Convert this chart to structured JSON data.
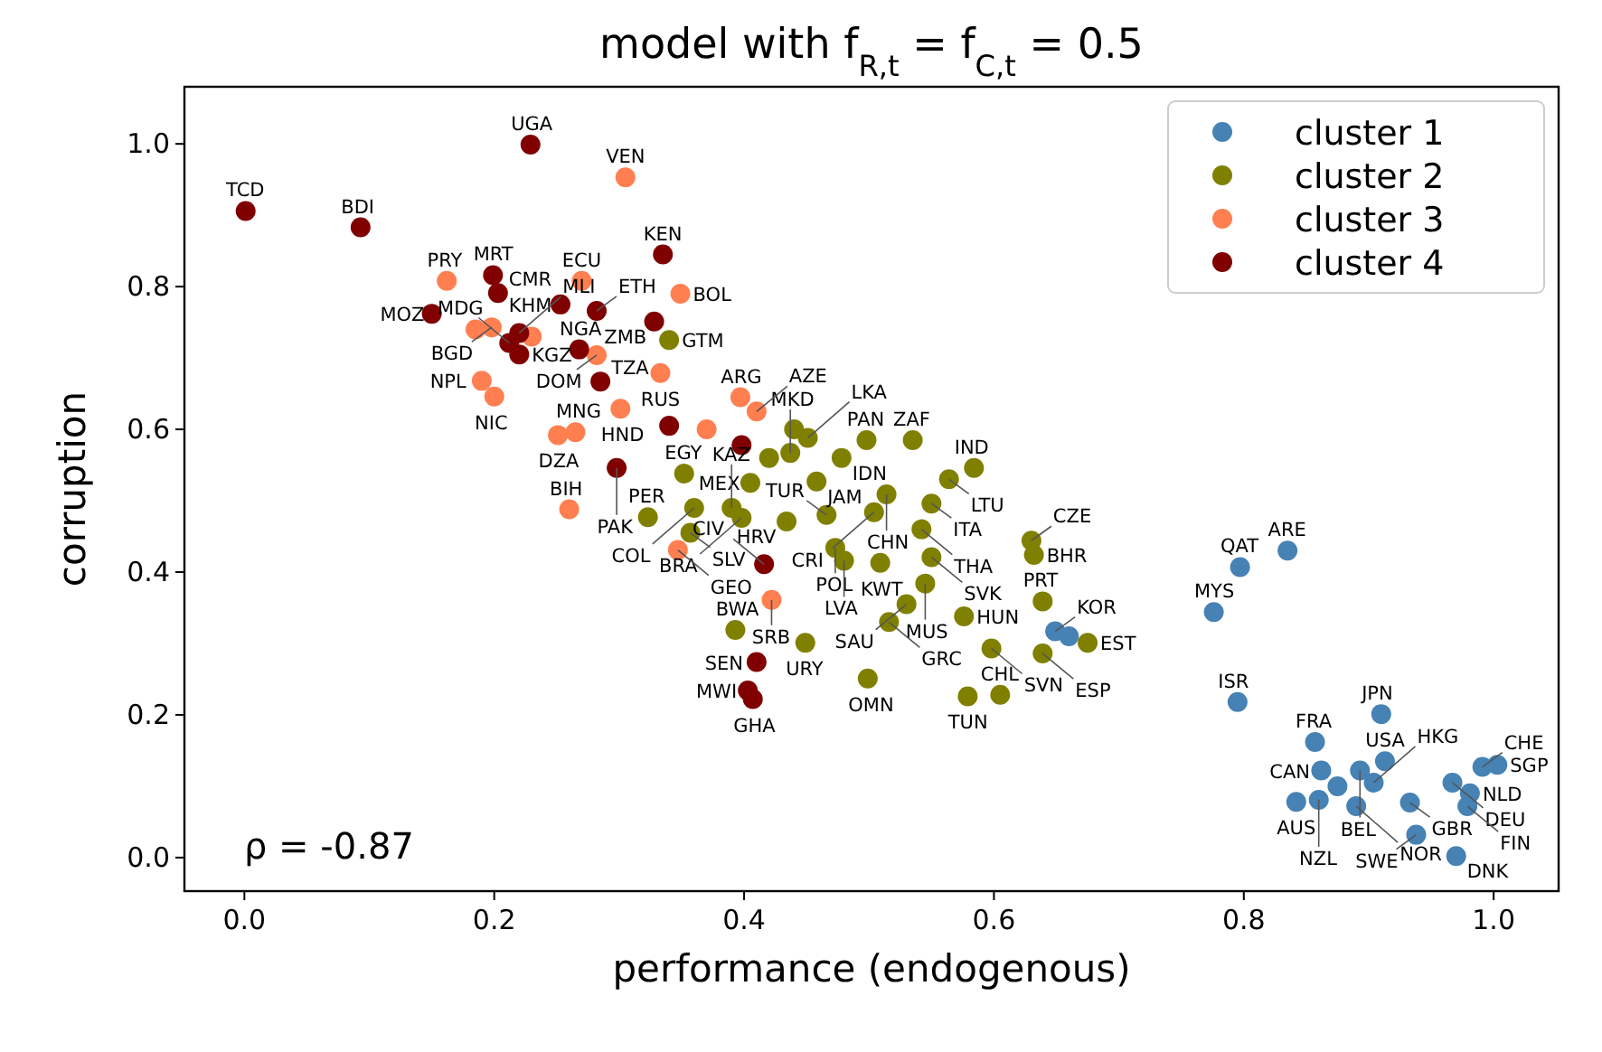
{
  "chart_data": {
    "type": "scatter",
    "title": "model with f$_{R,t}$ = f$_{C,t}$ = 0.5",
    "xlabel": "performance (endogenous)",
    "ylabel": "corruption",
    "xlim": [
      -0.048,
      1.052
    ],
    "ylim": [
      -0.047,
      1.08
    ],
    "xticks": [
      {
        "value": 0,
        "label": "0.0"
      },
      {
        "value": 0.2,
        "label": "0.2"
      },
      {
        "value": 0.4,
        "label": "0.4"
      },
      {
        "value": 0.6,
        "label": "0.6"
      },
      {
        "value": 0.8,
        "label": "0.8"
      },
      {
        "value": 1,
        "label": "1.0"
      }
    ],
    "yticks": [
      {
        "value": 0,
        "label": "0.0"
      },
      {
        "value": 0.2,
        "label": "0.2"
      },
      {
        "value": 0.4,
        "label": "0.4"
      },
      {
        "value": 0.6,
        "label": "0.6"
      },
      {
        "value": 0.8,
        "label": "0.8"
      },
      {
        "value": 1,
        "label": "1.0"
      }
    ],
    "grid": false,
    "legend": "top right",
    "marker": "circle",
    "series": [
      {
        "name": "cluster 1",
        "color": "#4682b4",
        "x": [
          0.835,
          0.797,
          0.776,
          0.795,
          0.91,
          0.857,
          0.913,
          0.893,
          0.862,
          0.842,
          0.86,
          0.89,
          0.933,
          0.967,
          0.991,
          1.003,
          0.981,
          0.979,
          0.938,
          0.97,
          0.904,
          0.875,
          0.649,
          0.66
        ],
        "values": [
          0.43,
          0.407,
          0.344,
          0.218,
          0.201,
          0.162,
          0.135,
          0.122,
          0.122,
          0.078,
          0.081,
          0.072,
          0.077,
          0.105,
          0.127,
          0.13,
          0.09,
          0.072,
          0.032,
          0.002,
          0.105,
          0.1,
          0.317,
          0.31
        ]
      },
      {
        "name": "cluster 2",
        "color": "#808000",
        "x": [
          0.535,
          0.498,
          0.478,
          0.564,
          0.584,
          0.514,
          0.55,
          0.504,
          0.542,
          0.466,
          0.473,
          0.48,
          0.509,
          0.55,
          0.63,
          0.632,
          0.545,
          0.53,
          0.516,
          0.576,
          0.639,
          0.598,
          0.639,
          0.675,
          0.499,
          0.579,
          0.605,
          0.449,
          0.393,
          0.323,
          0.357,
          0.352,
          0.405,
          0.458,
          0.437,
          0.451,
          0.398,
          0.434,
          0.34,
          0.39,
          0.36,
          0.44,
          0.42
        ],
        "values": [
          0.585,
          0.585,
          0.56,
          0.53,
          0.546,
          0.509,
          0.496,
          0.484,
          0.46,
          0.48,
          0.434,
          0.416,
          0.413,
          0.421,
          0.444,
          0.424,
          0.384,
          0.355,
          0.33,
          0.338,
          0.359,
          0.293,
          0.286,
          0.301,
          0.251,
          0.226,
          0.228,
          0.301,
          0.319,
          0.477,
          0.455,
          0.538,
          0.525,
          0.527,
          0.567,
          0.588,
          0.476,
          0.471,
          0.725,
          0.49,
          0.49,
          0.6,
          0.56
        ]
      },
      {
        "name": "cluster 3",
        "color": "#ff7f50",
        "x": [
          0.305,
          0.162,
          0.27,
          0.198,
          0.2,
          0.19,
          0.282,
          0.333,
          0.251,
          0.265,
          0.26,
          0.301,
          0.422,
          0.347,
          0.397,
          0.41,
          0.349,
          0.185,
          0.23,
          0.37
        ],
        "values": [
          0.953,
          0.808,
          0.808,
          0.743,
          0.646,
          0.668,
          0.704,
          0.679,
          0.592,
          0.596,
          0.488,
          0.629,
          0.361,
          0.431,
          0.645,
          0.625,
          0.79,
          0.74,
          0.73,
          0.6
        ]
      },
      {
        "name": "cluster 4",
        "color": "#800000",
        "x": [
          0.229,
          0.001,
          0.093,
          0.199,
          0.203,
          0.15,
          0.253,
          0.282,
          0.328,
          0.268,
          0.285,
          0.212,
          0.298,
          0.416,
          0.41,
          0.403,
          0.407,
          0.335,
          0.22,
          0.22,
          0.34,
          0.398
        ],
        "values": [
          0.999,
          0.906,
          0.883,
          0.816,
          0.791,
          0.762,
          0.775,
          0.766,
          0.751,
          0.712,
          0.667,
          0.721,
          0.546,
          0.411,
          0.274,
          0.234,
          0.222,
          0.845,
          0.705,
          0.735,
          0.605,
          0.578
        ]
      }
    ],
    "annotations": [
      {
        "text": "ρ = -0.87"
      },
      {
        "text": "ARE",
        "x": 0.835,
        "y": 0.43
      },
      {
        "text": "QAT",
        "x": 0.797,
        "y": 0.407
      },
      {
        "text": "MYS",
        "x": 0.776,
        "y": 0.344
      },
      {
        "text": "ISR",
        "x": 0.795,
        "y": 0.218
      },
      {
        "text": "JPN",
        "x": 0.91,
        "y": 0.201
      },
      {
        "text": "FRA",
        "x": 0.857,
        "y": 0.162
      },
      {
        "text": "USA",
        "x": 0.913,
        "y": 0.135
      },
      {
        "text": "BEL",
        "x": 0.893,
        "y": 0.122
      },
      {
        "text": "CAN",
        "x": 0.862,
        "y": 0.122
      },
      {
        "text": "AUS",
        "x": 0.842,
        "y": 0.078
      },
      {
        "text": "NZL",
        "x": 0.86,
        "y": 0.081
      },
      {
        "text": "NOR",
        "x": 0.89,
        "y": 0.072
      },
      {
        "text": "GBR",
        "x": 0.933,
        "y": 0.077
      },
      {
        "text": "DEU",
        "x": 0.967,
        "y": 0.105
      },
      {
        "text": "CHE",
        "x": 0.991,
        "y": 0.127
      },
      {
        "text": "SGP",
        "x": 1.003,
        "y": 0.13
      },
      {
        "text": "NLD",
        "x": 0.981,
        "y": 0.09
      },
      {
        "text": "FIN",
        "x": 0.979,
        "y": 0.072
      },
      {
        "text": "SWE",
        "x": 0.938,
        "y": 0.032
      },
      {
        "text": "DNK",
        "x": 0.97,
        "y": 0.002
      },
      {
        "text": "HKG",
        "x": 0.904,
        "y": 0.105
      },
      {
        "text": "KOR",
        "x": 0.649,
        "y": 0.317
      },
      {
        "text": "ZAF",
        "x": 0.535,
        "y": 0.585
      },
      {
        "text": "PAN",
        "x": 0.498,
        "y": 0.585
      },
      {
        "text": "IDN",
        "x": 0.478,
        "y": 0.56
      },
      {
        "text": "LTU",
        "x": 0.564,
        "y": 0.53
      },
      {
        "text": "IND",
        "x": 0.584,
        "y": 0.546
      },
      {
        "text": "CHN",
        "x": 0.514,
        "y": 0.509
      },
      {
        "text": "ITA",
        "x": 0.55,
        "y": 0.496
      },
      {
        "text": "CRI",
        "x": 0.504,
        "y": 0.484
      },
      {
        "text": "THA",
        "x": 0.542,
        "y": 0.46
      },
      {
        "text": "TUR",
        "x": 0.466,
        "y": 0.48
      },
      {
        "text": "POL",
        "x": 0.473,
        "y": 0.434
      },
      {
        "text": "LVA",
        "x": 0.48,
        "y": 0.416
      },
      {
        "text": "KWT",
        "x": 0.509,
        "y": 0.413
      },
      {
        "text": "SVK",
        "x": 0.55,
        "y": 0.421
      },
      {
        "text": "CZE",
        "x": 0.63,
        "y": 0.444
      },
      {
        "text": "BHR",
        "x": 0.632,
        "y": 0.424
      },
      {
        "text": "MUS",
        "x": 0.545,
        "y": 0.384
      },
      {
        "text": "SAU",
        "x": 0.53,
        "y": 0.355
      },
      {
        "text": "GRC",
        "x": 0.516,
        "y": 0.33
      },
      {
        "text": "HUN",
        "x": 0.576,
        "y": 0.338
      },
      {
        "text": "PRT",
        "x": 0.639,
        "y": 0.359
      },
      {
        "text": "SVN",
        "x": 0.598,
        "y": 0.293
      },
      {
        "text": "ESP",
        "x": 0.639,
        "y": 0.286
      },
      {
        "text": "EST",
        "x": 0.675,
        "y": 0.301
      },
      {
        "text": "OMN",
        "x": 0.499,
        "y": 0.251
      },
      {
        "text": "TUN",
        "x": 0.579,
        "y": 0.226
      },
      {
        "text": "CHL",
        "x": 0.605,
        "y": 0.228
      },
      {
        "text": "URY",
        "x": 0.449,
        "y": 0.301
      },
      {
        "text": "BWA",
        "x": 0.393,
        "y": 0.319
      },
      {
        "text": "PER",
        "x": 0.323,
        "y": 0.477
      },
      {
        "text": "SLV",
        "x": 0.357,
        "y": 0.455
      },
      {
        "text": "EGY",
        "x": 0.352,
        "y": 0.538
      },
      {
        "text": "MEX",
        "x": 0.405,
        "y": 0.525
      },
      {
        "text": "JAM",
        "x": 0.458,
        "y": 0.527
      },
      {
        "text": "MKD",
        "x": 0.437,
        "y": 0.567
      },
      {
        "text": "LKA",
        "x": 0.451,
        "y": 0.588
      },
      {
        "text": "BRA",
        "x": 0.398,
        "y": 0.476
      },
      {
        "text": "HRV",
        "x": 0.434,
        "y": 0.471
      },
      {
        "text": "GTM",
        "x": 0.34,
        "y": 0.725
      },
      {
        "text": "KAZ",
        "x": 0.39,
        "y": 0.49
      },
      {
        "text": "COL",
        "x": 0.36,
        "y": 0.49
      },
      {
        "text": "VEN",
        "x": 0.305,
        "y": 0.953
      },
      {
        "text": "PRY",
        "x": 0.162,
        "y": 0.808
      },
      {
        "text": "ECU",
        "x": 0.27,
        "y": 0.808
      },
      {
        "text": "BGD",
        "x": 0.198,
        "y": 0.743
      },
      {
        "text": "NIC",
        "x": 0.2,
        "y": 0.646
      },
      {
        "text": "NPL",
        "x": 0.19,
        "y": 0.668
      },
      {
        "text": "DOM",
        "x": 0.282,
        "y": 0.704
      },
      {
        "text": "RUS",
        "x": 0.333,
        "y": 0.679
      },
      {
        "text": "DZA",
        "x": 0.251,
        "y": 0.592
      },
      {
        "text": "MNG",
        "x": 0.265,
        "y": 0.596
      },
      {
        "text": "BIH",
        "x": 0.26,
        "y": 0.488
      },
      {
        "text": "HND",
        "x": 0.301,
        "y": 0.629
      },
      {
        "text": "SRB",
        "x": 0.422,
        "y": 0.361
      },
      {
        "text": "GEO",
        "x": 0.347,
        "y": 0.431
      },
      {
        "text": "ARG",
        "x": 0.397,
        "y": 0.645
      },
      {
        "text": "AZE",
        "x": 0.41,
        "y": 0.625
      },
      {
        "text": "BOL",
        "x": 0.349,
        "y": 0.79
      },
      {
        "text": "UGA",
        "x": 0.229,
        "y": 0.999
      },
      {
        "text": "TCD",
        "x": 0.001,
        "y": 0.906
      },
      {
        "text": "BDI",
        "x": 0.093,
        "y": 0.883
      },
      {
        "text": "MRT",
        "x": 0.199,
        "y": 0.816
      },
      {
        "text": "CMR",
        "x": 0.203,
        "y": 0.791
      },
      {
        "text": "MOZ",
        "x": 0.15,
        "y": 0.762
      },
      {
        "text": "KHM",
        "x": 0.253,
        "y": 0.775
      },
      {
        "text": "ETH",
        "x": 0.282,
        "y": 0.766
      },
      {
        "text": "ZMB",
        "x": 0.328,
        "y": 0.751
      },
      {
        "text": "NGA",
        "x": 0.268,
        "y": 0.712
      },
      {
        "text": "TZA",
        "x": 0.285,
        "y": 0.667
      },
      {
        "text": "MDG",
        "x": 0.212,
        "y": 0.721
      },
      {
        "text": "PAK",
        "x": 0.298,
        "y": 0.546
      },
      {
        "text": "CIV",
        "x": 0.416,
        "y": 0.411
      },
      {
        "text": "SEN",
        "x": 0.41,
        "y": 0.274
      },
      {
        "text": "MWI",
        "x": 0.403,
        "y": 0.234
      },
      {
        "text": "GHA",
        "x": 0.407,
        "y": 0.222
      },
      {
        "text": "KEN",
        "x": 0.335,
        "y": 0.845
      },
      {
        "text": "KGZ",
        "x": 0.22,
        "y": 0.705
      },
      {
        "text": "MLI",
        "x": 0.22,
        "y": 0.735
      }
    ]
  }
}
